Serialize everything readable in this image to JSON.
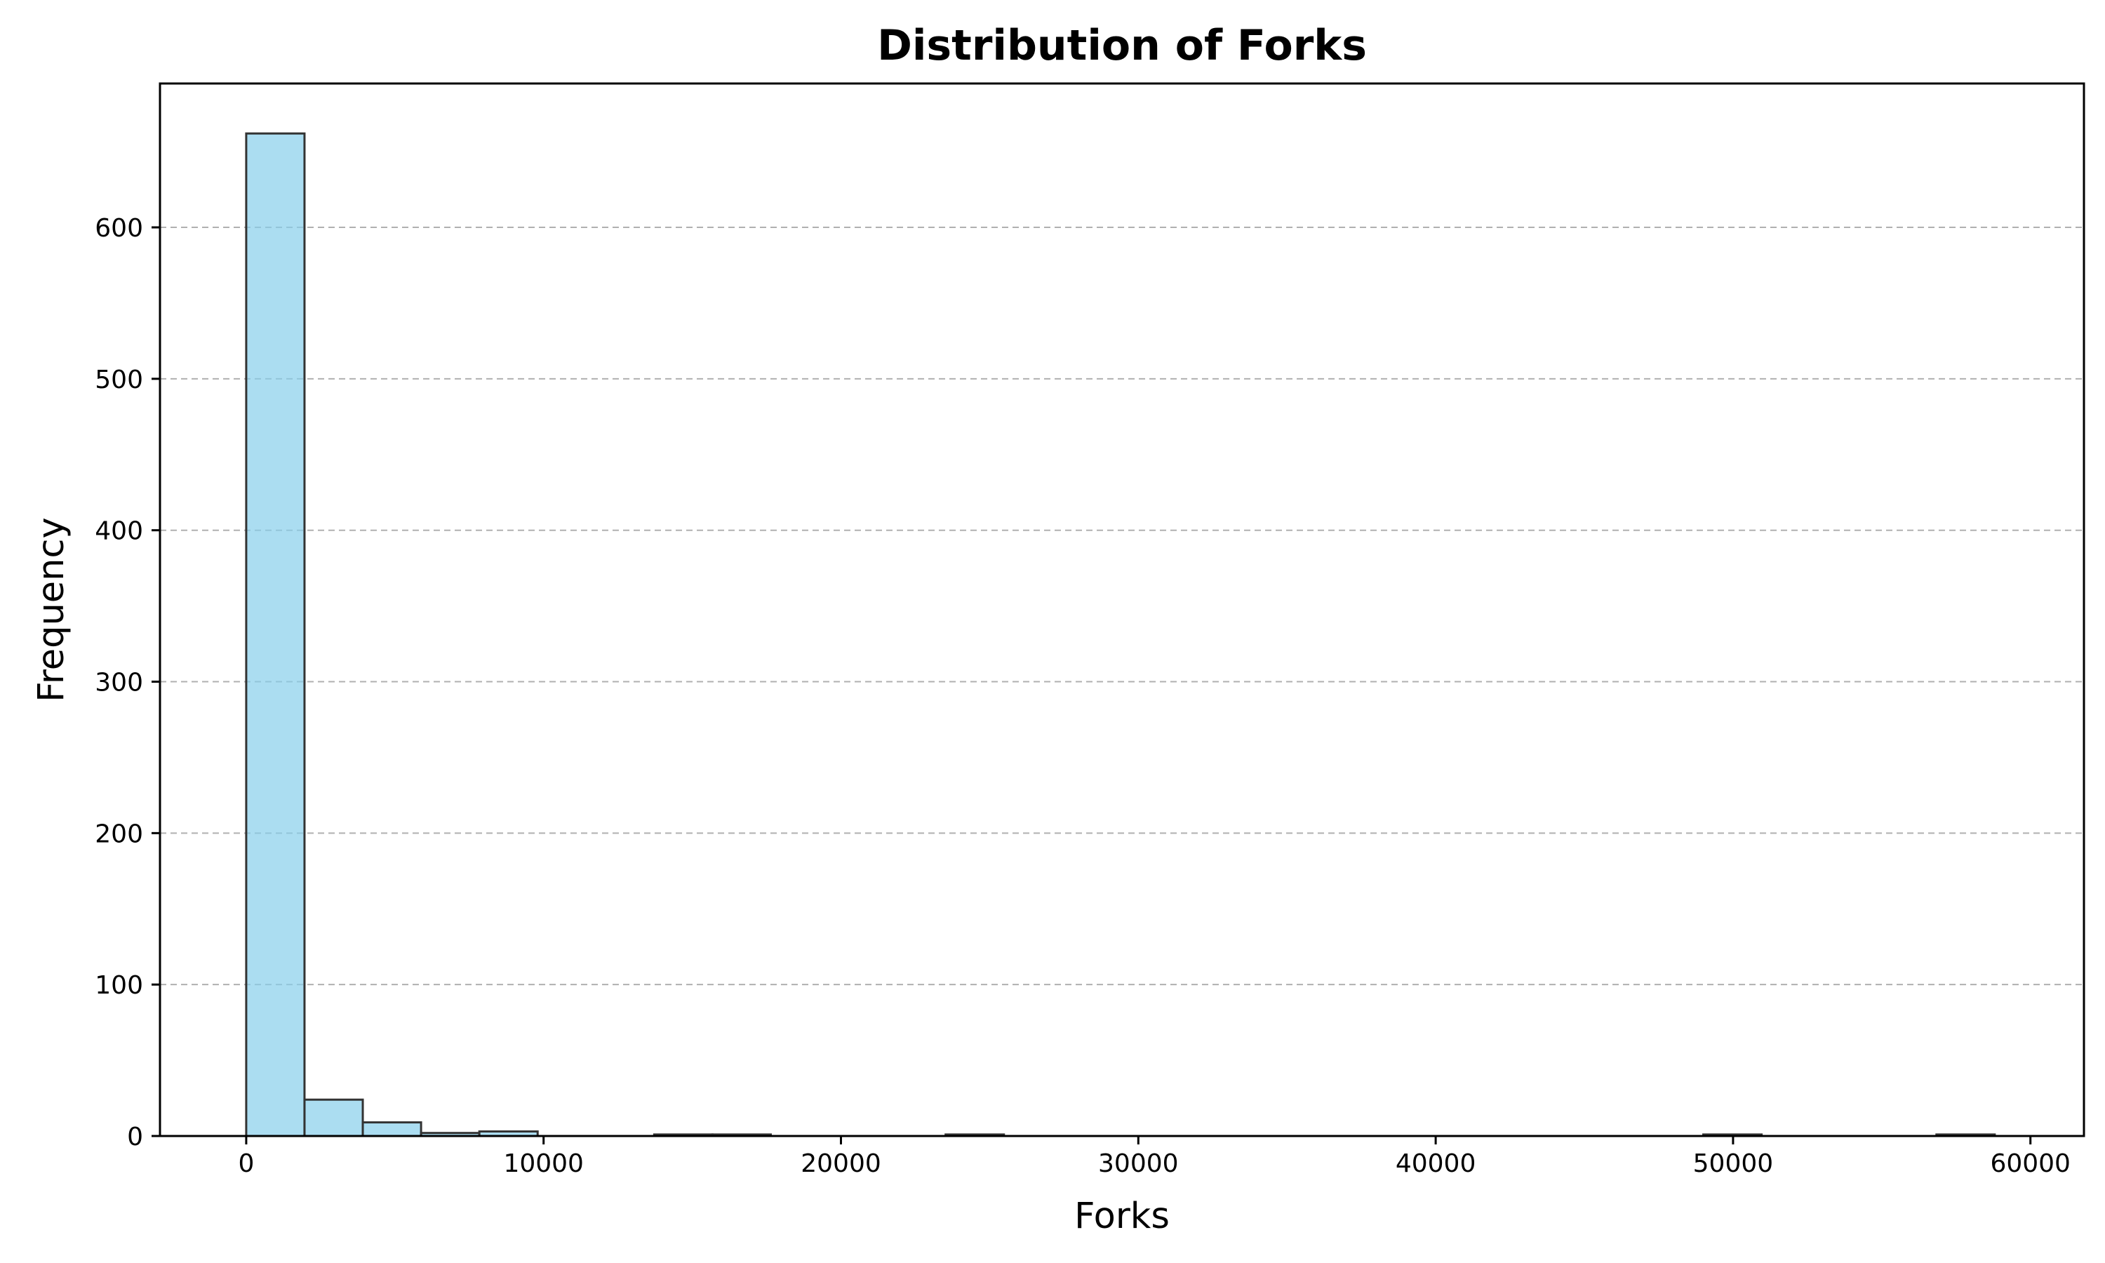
{
  "chart_data": {
    "type": "bar",
    "title": "Distribution of Forks",
    "xlabel": "Forks",
    "ylabel": "Frequency",
    "bar_color": "#87CEEB",
    "edge_color": "#333333",
    "grid": {
      "axis": "y",
      "style": "dashed"
    },
    "xlim": [
      -2900,
      61800
    ],
    "ylim": [
      0,
      695
    ],
    "xticks": [
      0,
      10000,
      20000,
      30000,
      40000,
      50000,
      60000
    ],
    "yticks": [
      0,
      100,
      200,
      300,
      400,
      500,
      600
    ],
    "bins": [
      {
        "x0": 0,
        "x1": 1960,
        "count": 662
      },
      {
        "x0": 1960,
        "x1": 3920,
        "count": 24
      },
      {
        "x0": 3920,
        "x1": 5880,
        "count": 9
      },
      {
        "x0": 5880,
        "x1": 7840,
        "count": 2
      },
      {
        "x0": 7840,
        "x1": 9800,
        "count": 3
      },
      {
        "x0": 9800,
        "x1": 11760,
        "count": 0
      },
      {
        "x0": 11760,
        "x1": 13720,
        "count": 0
      },
      {
        "x0": 13720,
        "x1": 15680,
        "count": 1
      },
      {
        "x0": 15680,
        "x1": 17640,
        "count": 1
      },
      {
        "x0": 17640,
        "x1": 19600,
        "count": 0
      },
      {
        "x0": 19600,
        "x1": 21560,
        "count": 0
      },
      {
        "x0": 21560,
        "x1": 23520,
        "count": 0
      },
      {
        "x0": 23520,
        "x1": 25480,
        "count": 1
      },
      {
        "x0": 25480,
        "x1": 27440,
        "count": 0
      },
      {
        "x0": 27440,
        "x1": 29400,
        "count": 0
      },
      {
        "x0": 29400,
        "x1": 31360,
        "count": 0
      },
      {
        "x0": 31360,
        "x1": 33320,
        "count": 0
      },
      {
        "x0": 33320,
        "x1": 35280,
        "count": 0
      },
      {
        "x0": 35280,
        "x1": 37240,
        "count": 0
      },
      {
        "x0": 37240,
        "x1": 39200,
        "count": 0
      },
      {
        "x0": 39200,
        "x1": 41160,
        "count": 0
      },
      {
        "x0": 41160,
        "x1": 43120,
        "count": 0
      },
      {
        "x0": 43120,
        "x1": 45080,
        "count": 0
      },
      {
        "x0": 45080,
        "x1": 47040,
        "count": 0
      },
      {
        "x0": 47040,
        "x1": 49000,
        "count": 0
      },
      {
        "x0": 49000,
        "x1": 50960,
        "count": 1
      },
      {
        "x0": 50960,
        "x1": 52920,
        "count": 0
      },
      {
        "x0": 52920,
        "x1": 54880,
        "count": 0
      },
      {
        "x0": 54880,
        "x1": 56840,
        "count": 0
      },
      {
        "x0": 56840,
        "x1": 58800,
        "count": 1
      }
    ]
  }
}
